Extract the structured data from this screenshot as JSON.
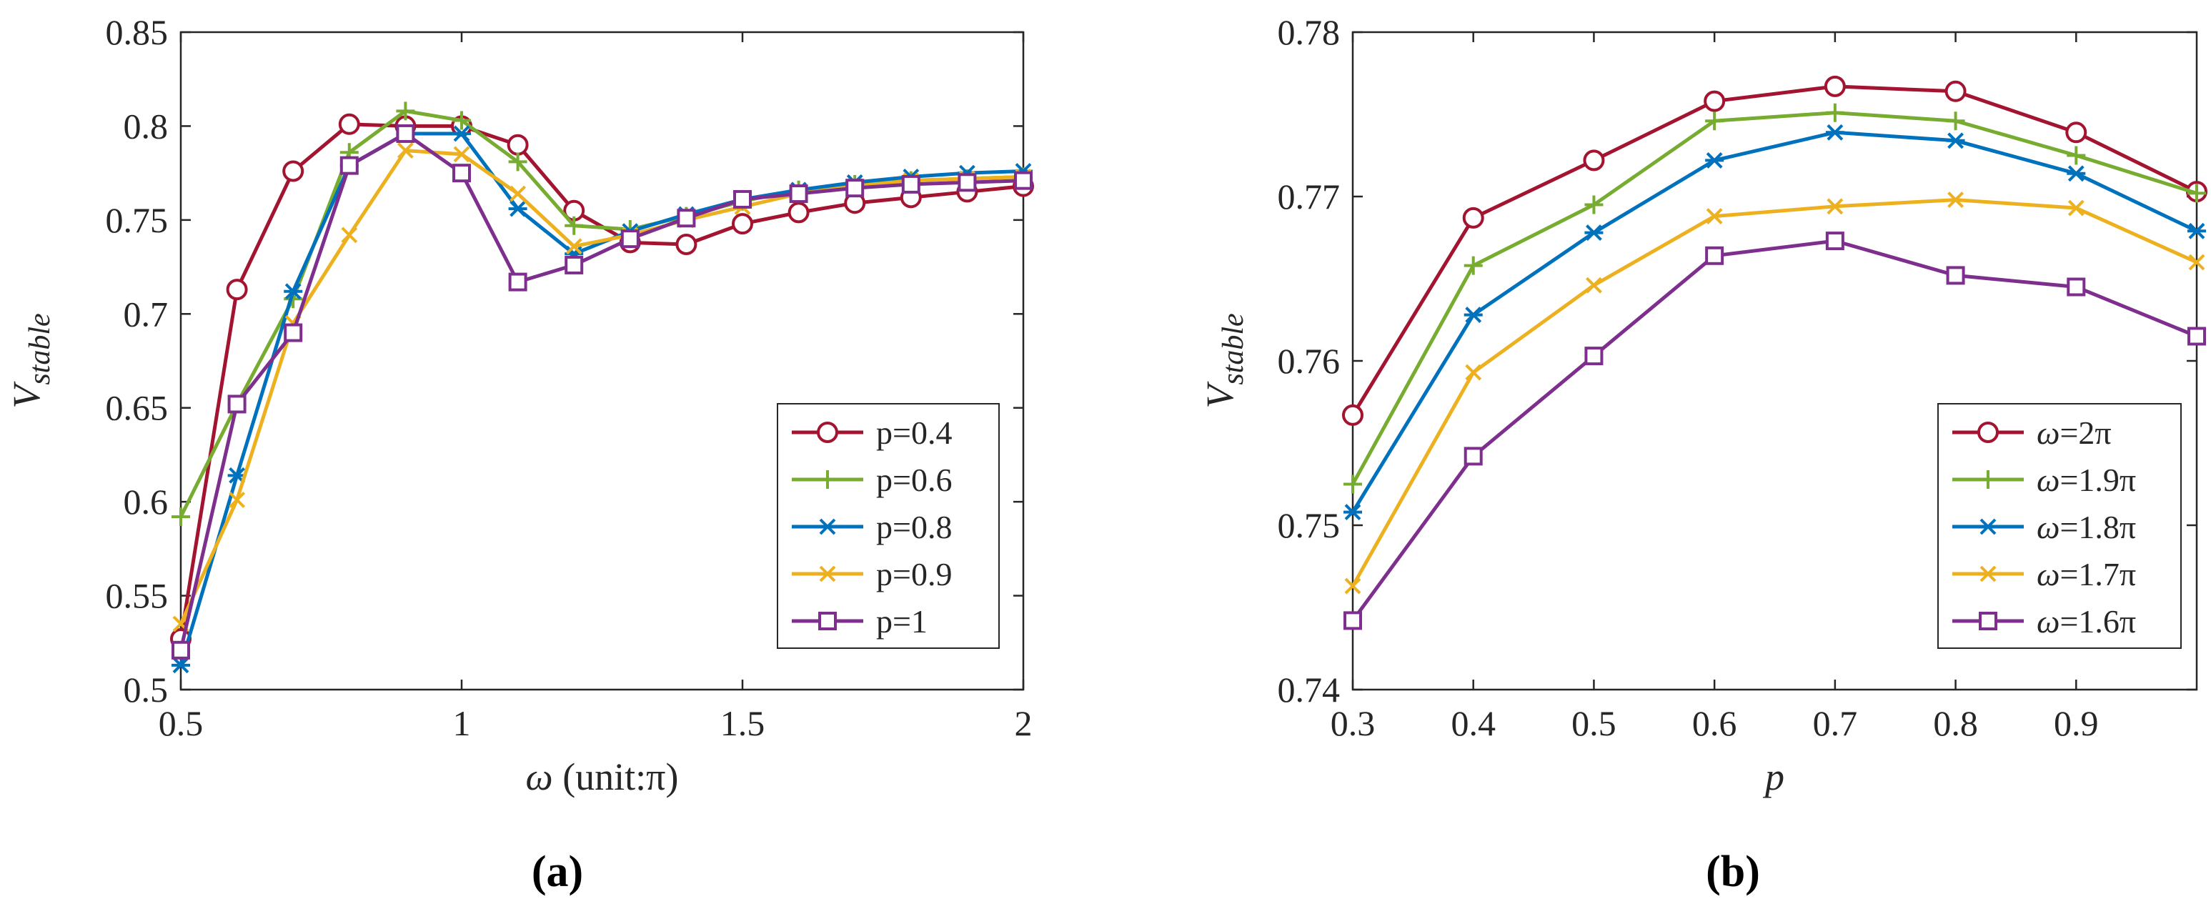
{
  "chart_data": [
    {
      "type": "line",
      "panel_label": "(a)",
      "xlabel": "ω (unit:π)",
      "ylabel": "V_stable",
      "ylabel_main": "V",
      "ylabel_sub": "stable",
      "xlim": [
        0.5,
        2
      ],
      "ylim": [
        0.5,
        0.85
      ],
      "xticks": [
        0.5,
        1,
        1.5,
        2
      ],
      "xtick_labels": [
        "0.5",
        "1",
        "1.5",
        "2"
      ],
      "yticks": [
        0.5,
        0.55,
        0.6,
        0.65,
        0.7,
        0.75,
        0.8,
        0.85
      ],
      "ytick_labels": [
        "0.5",
        "0.55",
        "0.6",
        "0.65",
        "0.7",
        "0.75",
        "0.8",
        "0.85"
      ],
      "grid": false,
      "legend_position": "bottom-right",
      "x": [
        0.5,
        0.6,
        0.7,
        0.8,
        0.9,
        1.0,
        1.1,
        1.2,
        1.3,
        1.4,
        1.5,
        1.6,
        1.7,
        1.8,
        1.9,
        2.0
      ],
      "series": [
        {
          "name": "p=0.4",
          "color": "#A2142F",
          "marker": "circle",
          "values": [
            0.527,
            0.713,
            0.776,
            0.801,
            0.8,
            0.8,
            0.79,
            0.755,
            0.738,
            0.737,
            0.748,
            0.754,
            0.759,
            0.762,
            0.765,
            0.768
          ]
        },
        {
          "name": "p=0.6",
          "color": "#77AC30",
          "marker": "plus",
          "values": [
            0.592,
            0.652,
            0.708,
            0.786,
            0.808,
            0.803,
            0.781,
            0.747,
            0.745,
            0.752,
            0.76,
            0.766,
            0.769,
            0.771,
            0.772,
            0.773
          ]
        },
        {
          "name": "p=0.8",
          "color": "#0072BD",
          "marker": "asterisk",
          "values": [
            0.513,
            0.614,
            0.712,
            0.779,
            0.796,
            0.796,
            0.756,
            0.732,
            0.744,
            0.753,
            0.761,
            0.766,
            0.77,
            0.773,
            0.775,
            0.776
          ]
        },
        {
          "name": "p=0.9",
          "color": "#EDB120",
          "marker": "x",
          "values": [
            0.535,
            0.601,
            0.695,
            0.742,
            0.787,
            0.785,
            0.764,
            0.736,
            0.742,
            0.75,
            0.757,
            0.764,
            0.768,
            0.771,
            0.772,
            0.773
          ]
        },
        {
          "name": "p=1",
          "color": "#7E2F8E",
          "marker": "square",
          "values": [
            0.521,
            0.652,
            0.69,
            0.779,
            0.796,
            0.775,
            0.717,
            0.726,
            0.74,
            0.751,
            0.761,
            0.764,
            0.767,
            0.769,
            0.77,
            0.771
          ]
        }
      ]
    },
    {
      "type": "line",
      "panel_label": "(b)",
      "xlabel": "p",
      "ylabel": "V_stable",
      "ylabel_main": "V",
      "ylabel_sub": "stable",
      "xlim": [
        0.3,
        1.0
      ],
      "ylim": [
        0.74,
        0.78
      ],
      "xticks": [
        0.3,
        0.4,
        0.5,
        0.6,
        0.7,
        0.8,
        0.9
      ],
      "xtick_labels": [
        "0.3",
        "0.4",
        "0.5",
        "0.6",
        "0.7",
        "0.8",
        "0.9"
      ],
      "yticks": [
        0.74,
        0.75,
        0.76,
        0.77,
        0.78
      ],
      "ytick_labels": [
        "0.74",
        "0.75",
        "0.76",
        "0.77",
        "0.78"
      ],
      "grid": false,
      "legend_position": "bottom-right",
      "x": [
        0.3,
        0.4,
        0.5,
        0.6,
        0.7,
        0.8,
        0.9,
        1.0
      ],
      "series": [
        {
          "name": "ω=2π",
          "color": "#A2142F",
          "marker": "circle",
          "values": [
            0.7567,
            0.7687,
            0.7722,
            0.7758,
            0.7767,
            0.7764,
            0.7739,
            0.7703
          ]
        },
        {
          "name": "ω=1.9π",
          "color": "#77AC30",
          "marker": "plus",
          "values": [
            0.7525,
            0.7658,
            0.7695,
            0.7746,
            0.7751,
            0.7746,
            0.7725,
            0.7702
          ]
        },
        {
          "name": "ω=1.8π",
          "color": "#0072BD",
          "marker": "asterisk",
          "values": [
            0.7508,
            0.7628,
            0.7678,
            0.7722,
            0.7739,
            0.7734,
            0.7714,
            0.7679
          ]
        },
        {
          "name": "ω=1.7π",
          "color": "#EDB120",
          "marker": "x",
          "values": [
            0.7463,
            0.7593,
            0.7646,
            0.7688,
            0.7694,
            0.7698,
            0.7693,
            0.766
          ]
        },
        {
          "name": "ω=1.6π",
          "color": "#7E2F8E",
          "marker": "square",
          "values": [
            0.7442,
            0.7542,
            0.7603,
            0.7664,
            0.7673,
            0.7652,
            0.7645,
            0.7615
          ]
        }
      ]
    }
  ]
}
